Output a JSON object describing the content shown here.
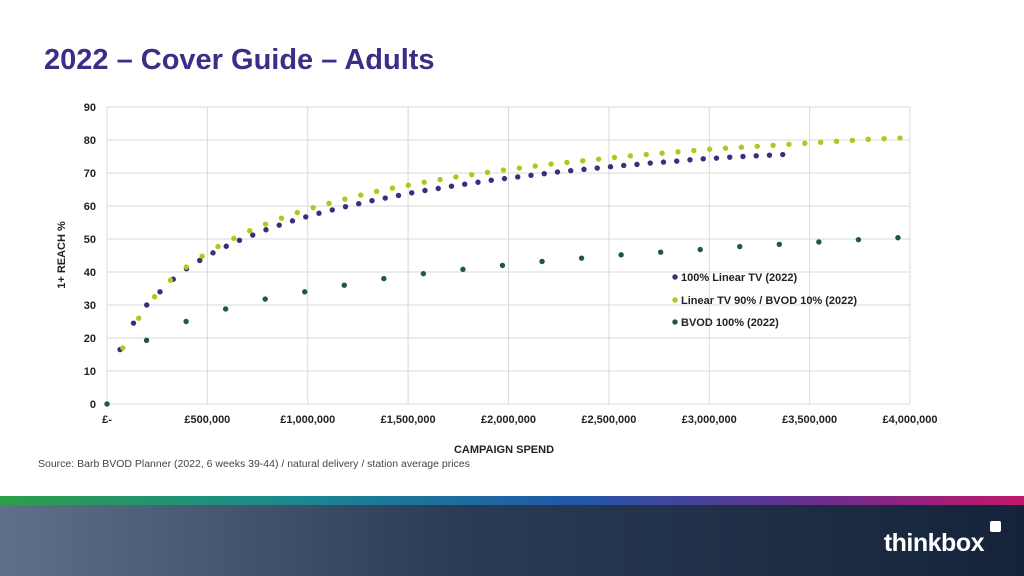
{
  "header": {
    "title": "2022 – Cover Guide – Adults"
  },
  "footer": {
    "source": "Source: Barb BVOD Planner (2022, 6 weeks 39-44) / natural delivery / station average prices",
    "brand": "thinkbox"
  },
  "colors": {
    "title": "#3a2f86",
    "linear": "#3b2f7d",
    "mix": "#a8cc1e",
    "bvod": "#1f5a3a",
    "grid": "#d9d9d9"
  },
  "chart_data": {
    "type": "scatter",
    "xlabel": "CAMPAIGN SPEND",
    "ylabel": "1+ REACH %",
    "xlim": [
      0,
      4000000
    ],
    "ylim": [
      0,
      90
    ],
    "x_ticks": [
      0,
      500000,
      1000000,
      1500000,
      2000000,
      2500000,
      3000000,
      3500000,
      4000000
    ],
    "x_tick_labels": [
      "£-",
      "£500,000",
      "£1,000,000",
      "£1,500,000",
      "£2,000,000",
      "£2,500,000",
      "£3,000,000",
      "£3,500,000",
      "£4,000,000"
    ],
    "y_ticks": [
      0,
      10,
      20,
      30,
      40,
      50,
      60,
      70,
      80,
      90
    ],
    "y_tick_labels": [
      "0",
      "10",
      "20",
      "30",
      "40",
      "50",
      "60",
      "70",
      "80",
      "90"
    ],
    "grid": true,
    "legend_position": "right-middle",
    "series": [
      {
        "name": "100% Linear TV (2022)",
        "color": "#3b2f7d",
        "x": [
          65000,
          132000,
          198000,
          264000,
          330000,
          396000,
          462000,
          528000,
          594000,
          660000,
          726000,
          792000,
          858000,
          924000,
          990000,
          1056000,
          1122000,
          1188000,
          1254000,
          1320000,
          1386000,
          1452000,
          1518000,
          1584000,
          1650000,
          1716000,
          1782000,
          1848000,
          1914000,
          1980000,
          2046000,
          2112000,
          2178000,
          2244000,
          2310000,
          2376000,
          2442000,
          2508000,
          2574000,
          2640000,
          2706000,
          2772000,
          2838000,
          2904000,
          2970000,
          3036000,
          3102000,
          3168000,
          3234000,
          3300000,
          3366000
        ],
        "y": [
          16.5,
          24.5,
          30,
          34,
          37.8,
          41,
          43.5,
          45.8,
          47.8,
          49.6,
          51.2,
          52.8,
          54.2,
          55.5,
          56.7,
          57.8,
          58.8,
          59.8,
          60.7,
          61.6,
          62.4,
          63.2,
          64,
          64.7,
          65.3,
          66,
          66.6,
          67.2,
          67.8,
          68.3,
          68.8,
          69.3,
          69.8,
          70.3,
          70.7,
          71.1,
          71.5,
          71.9,
          72.3,
          72.6,
          73,
          73.3,
          73.6,
          74,
          74.3,
          74.5,
          74.8,
          75,
          75.2,
          75.4,
          75.6
        ]
      },
      {
        "name": "Linear TV 90% / BVOD 10% (2022)",
        "color": "#a8cc1e",
        "x": [
          79000,
          158000,
          237000,
          316000,
          395000,
          474000,
          553000,
          632000,
          711000,
          790000,
          869000,
          948000,
          1027000,
          1106000,
          1185000,
          1264000,
          1343000,
          1422000,
          1501000,
          1580000,
          1659000,
          1738000,
          1817000,
          1896000,
          1975000,
          2054000,
          2133000,
          2212000,
          2291000,
          2370000,
          2449000,
          2528000,
          2607000,
          2686000,
          2765000,
          2844000,
          2923000,
          3002000,
          3081000,
          3160000,
          3239000,
          3318000,
          3397000,
          3476000,
          3555000,
          3634000,
          3713000,
          3792000,
          3871000,
          3950000
        ],
        "y": [
          17,
          26,
          32.5,
          37.5,
          41.5,
          44.8,
          47.7,
          50.2,
          52.5,
          54.5,
          56.3,
          58,
          59.5,
          60.8,
          62.1,
          63.3,
          64.4,
          65.4,
          66.3,
          67.2,
          68,
          68.8,
          69.5,
          70.2,
          70.9,
          71.5,
          72.1,
          72.7,
          73.2,
          73.7,
          74.2,
          74.7,
          75.2,
          75.6,
          76,
          76.4,
          76.8,
          77.2,
          77.5,
          77.8,
          78.1,
          78.4,
          78.7,
          79,
          79.3,
          79.6,
          79.9,
          80.2,
          80.4,
          80.6
        ]
      },
      {
        "name": "BVOD 100% (2022)",
        "color": "#1f5a3a",
        "x": [
          0,
          197000,
          394000,
          591000,
          788000,
          985000,
          1182000,
          1379000,
          1576000,
          1773000,
          1970000,
          2167000,
          2364000,
          2561000,
          2758000,
          2955000,
          3152000,
          3349000,
          3546000,
          3743000,
          3940000
        ],
        "y": [
          0,
          19.3,
          25,
          28.8,
          31.8,
          34,
          36,
          38,
          39.5,
          40.8,
          42,
          43.2,
          44.2,
          45.2,
          46,
          46.8,
          47.7,
          48.4,
          49.1,
          49.8,
          50.4
        ]
      }
    ]
  }
}
